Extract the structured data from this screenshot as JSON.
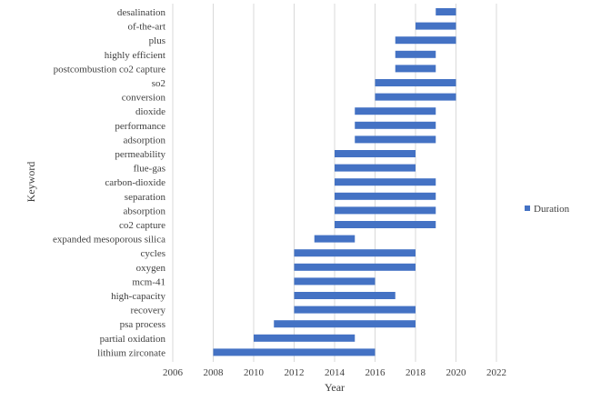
{
  "chart_data": {
    "type": "bar",
    "orientation": "horizontal",
    "title": "",
    "xlabel": "Year",
    "ylabel": "Keyword",
    "xlim": [
      2006,
      2022
    ],
    "xticks": [
      2006,
      2008,
      2010,
      2012,
      2014,
      2016,
      2018,
      2020,
      2022
    ],
    "grid": "vertical",
    "legend_position": "right",
    "series": [
      {
        "name": "Duration",
        "color": "#4472C4",
        "items": [
          {
            "keyword": "desalination",
            "start": 2019,
            "end": 2020
          },
          {
            "keyword": "of-the-art",
            "start": 2018,
            "end": 2020
          },
          {
            "keyword": "plus",
            "start": 2017,
            "end": 2020
          },
          {
            "keyword": "highly efficient",
            "start": 2017,
            "end": 2019
          },
          {
            "keyword": "postcombustion co2 capture",
            "start": 2017,
            "end": 2019
          },
          {
            "keyword": "so2",
            "start": 2016,
            "end": 2020
          },
          {
            "keyword": "conversion",
            "start": 2016,
            "end": 2020
          },
          {
            "keyword": "dioxide",
            "start": 2015,
            "end": 2019
          },
          {
            "keyword": "performance",
            "start": 2015,
            "end": 2019
          },
          {
            "keyword": "adsorption",
            "start": 2015,
            "end": 2019
          },
          {
            "keyword": "permeability",
            "start": 2014,
            "end": 2018
          },
          {
            "keyword": "flue-gas",
            "start": 2014,
            "end": 2018
          },
          {
            "keyword": "carbon-dioxide",
            "start": 2014,
            "end": 2019
          },
          {
            "keyword": "separation",
            "start": 2014,
            "end": 2019
          },
          {
            "keyword": "absorption",
            "start": 2014,
            "end": 2019
          },
          {
            "keyword": "co2 capture",
            "start": 2014,
            "end": 2019
          },
          {
            "keyword": "expanded mesoporous silica",
            "start": 2013,
            "end": 2015
          },
          {
            "keyword": "cycles",
            "start": 2012,
            "end": 2018
          },
          {
            "keyword": "oxygen",
            "start": 2012,
            "end": 2018
          },
          {
            "keyword": "mcm-41",
            "start": 2012,
            "end": 2016
          },
          {
            "keyword": "high-capacity",
            "start": 2012,
            "end": 2017
          },
          {
            "keyword": "recovery",
            "start": 2012,
            "end": 2018
          },
          {
            "keyword": "psa process",
            "start": 2011,
            "end": 2018
          },
          {
            "keyword": "partial oxidation",
            "start": 2010,
            "end": 2015
          },
          {
            "keyword": "lithium zirconate",
            "start": 2008,
            "end": 2016
          }
        ]
      }
    ]
  }
}
